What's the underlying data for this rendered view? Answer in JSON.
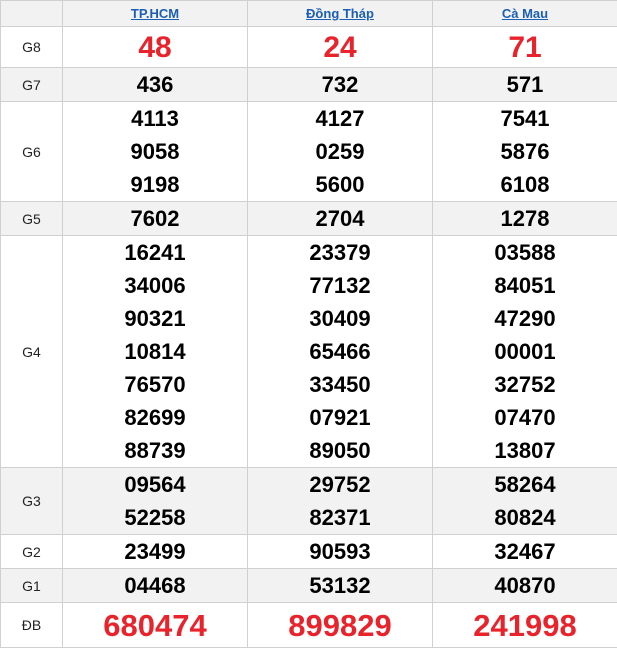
{
  "provinces": [
    "TP.HCM",
    "Đồng Tháp",
    "Cà Mau"
  ],
  "colors": {
    "special": "#e8232b",
    "link": "#1a5fb4",
    "alt_row": "#f2f2f2"
  },
  "prizes": [
    {
      "label": "G8",
      "values": [
        [
          "48"
        ],
        [
          "24"
        ],
        [
          "71"
        ]
      ]
    },
    {
      "label": "G7",
      "values": [
        [
          "436"
        ],
        [
          "732"
        ],
        [
          "571"
        ]
      ]
    },
    {
      "label": "G6",
      "values": [
        [
          "4113",
          "9058",
          "9198"
        ],
        [
          "4127",
          "0259",
          "5600"
        ],
        [
          "7541",
          "5876",
          "6108"
        ]
      ]
    },
    {
      "label": "G5",
      "values": [
        [
          "7602"
        ],
        [
          "2704"
        ],
        [
          "1278"
        ]
      ]
    },
    {
      "label": "G4",
      "values": [
        [
          "16241",
          "34006",
          "90321",
          "10814",
          "76570",
          "82699",
          "88739"
        ],
        [
          "23379",
          "77132",
          "30409",
          "65466",
          "33450",
          "07921",
          "89050"
        ],
        [
          "03588",
          "84051",
          "47290",
          "00001",
          "32752",
          "07470",
          "13807"
        ]
      ]
    },
    {
      "label": "G3",
      "values": [
        [
          "09564",
          "52258"
        ],
        [
          "29752",
          "82371"
        ],
        [
          "58264",
          "80824"
        ]
      ]
    },
    {
      "label": "G2",
      "values": [
        [
          "23499"
        ],
        [
          "90593"
        ],
        [
          "32467"
        ]
      ]
    },
    {
      "label": "G1",
      "values": [
        [
          "04468"
        ],
        [
          "53132"
        ],
        [
          "40870"
        ]
      ]
    },
    {
      "label": "ĐB",
      "values": [
        [
          "680474"
        ],
        [
          "899829"
        ],
        [
          "241998"
        ]
      ]
    }
  ]
}
